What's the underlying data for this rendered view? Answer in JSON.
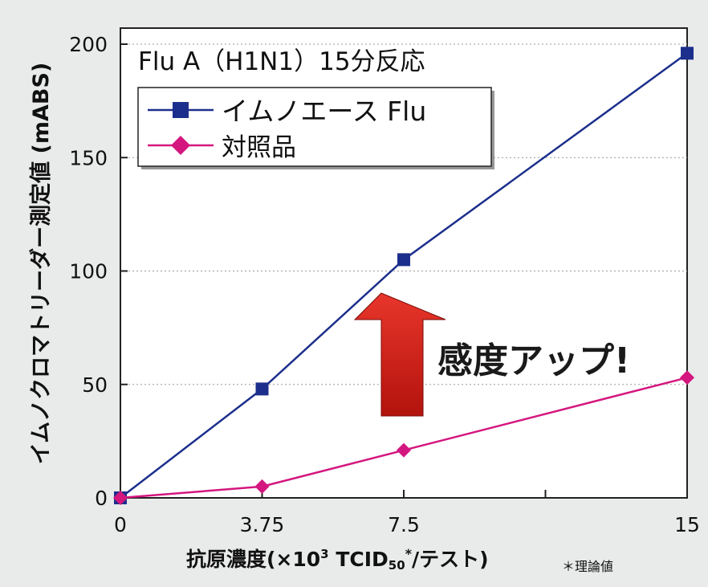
{
  "chart_data": {
    "type": "line",
    "title": "Flu A（H1N1）15分反応",
    "xlabel_main": "抗原濃度(×10",
    "xlabel_sup": "3",
    "xlabel_mid": " TCID",
    "xlabel_sub": "50",
    "xlabel_star": "*",
    "xlabel_end": "/テスト)",
    "xlabel_note": "＊理論値",
    "ylabel": "イムノクロマトリーダー測定値 (mABS)",
    "xlim": [
      0,
      15
    ],
    "ylim": [
      0,
      200
    ],
    "x_ticks": [
      0,
      3.75,
      7.5,
      15
    ],
    "x_tick_labels": [
      "0",
      "3.75",
      "7.5",
      "15"
    ],
    "x_minor_ticks": [
      11.25
    ],
    "y_ticks": [
      0,
      50,
      100,
      150,
      200
    ],
    "y_tick_labels": [
      "0",
      "50",
      "100",
      "150",
      "200"
    ],
    "grid": "horizontal dashed",
    "legend_position": "top-left",
    "series": [
      {
        "name": "イムノエース Flu",
        "color": "#1c2f8c",
        "marker": "square",
        "x": [
          0,
          3.75,
          7.5,
          15
        ],
        "y": [
          0,
          48,
          105,
          196
        ]
      },
      {
        "name": "対照品",
        "color": "#d4177f",
        "marker": "diamond",
        "x": [
          0,
          3.75,
          7.5,
          15
        ],
        "y": [
          0,
          5,
          21,
          53
        ]
      }
    ],
    "annotation": {
      "text": "感度アップ!",
      "arrow_color": "#d01a12",
      "arrow_direction": "up"
    }
  }
}
